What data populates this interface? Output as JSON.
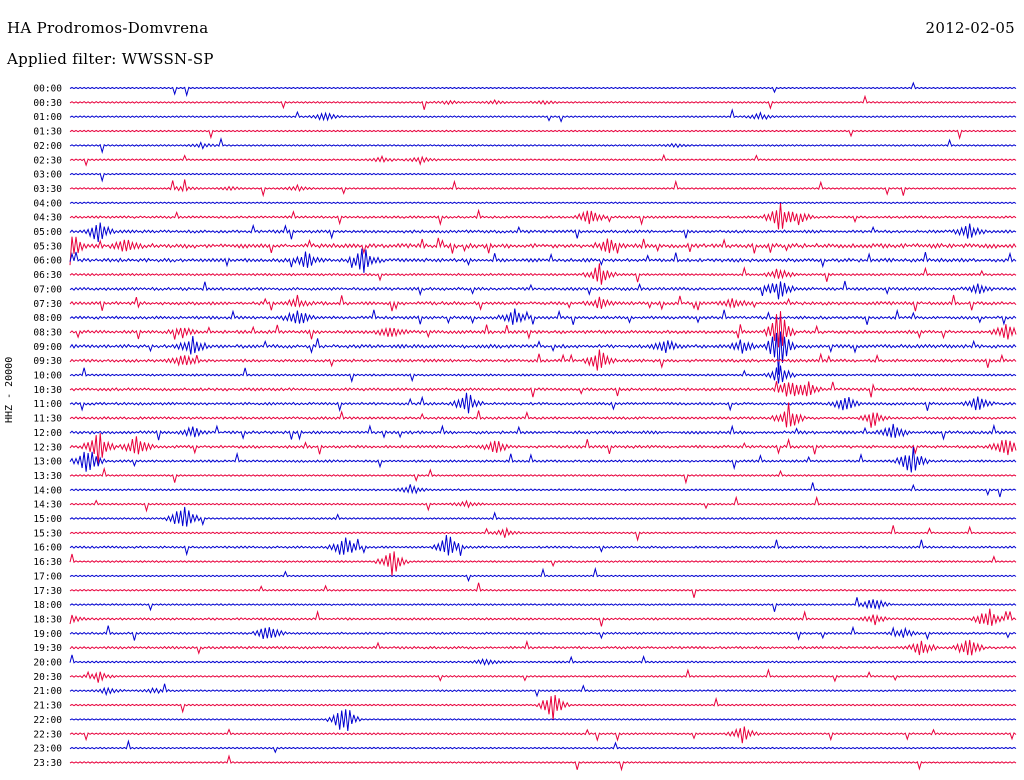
{
  "header": {
    "station": "HA Prodromos-Domvrena",
    "date": "2012-02-05",
    "filter": "Applied filter: WWSSN-SP",
    "channel": "HHZ - 20000"
  },
  "chart_data": {
    "type": "line",
    "title": "HA Prodromos-Domvrena",
    "subtitle": "Applied filter: WWSSN-SP",
    "date": "2012-02-05",
    "ylabel": "HHZ - 20000",
    "colors": {
      "even_row": "#0000d0",
      "odd_row": "#e8003c",
      "background": "#ffffff"
    },
    "rows": [
      {
        "label": "00:00",
        "activity": 0.05,
        "events": []
      },
      {
        "label": "00:30",
        "activity": 0.08,
        "events": [
          [
            0.4,
            2
          ],
          [
            0.45,
            2
          ],
          [
            0.5,
            2
          ]
        ]
      },
      {
        "label": "01:00",
        "activity": 0.08,
        "events": [
          [
            0.27,
            5
          ],
          [
            0.73,
            4
          ]
        ]
      },
      {
        "label": "01:30",
        "activity": 0.07,
        "events": []
      },
      {
        "label": "02:00",
        "activity": 0.07,
        "events": [
          [
            0.14,
            3
          ],
          [
            0.64,
            2
          ]
        ]
      },
      {
        "label": "02:30",
        "activity": 0.1,
        "events": [
          [
            0.33,
            3
          ],
          [
            0.37,
            4
          ]
        ]
      },
      {
        "label": "03:00",
        "activity": 0.05,
        "events": []
      },
      {
        "label": "03:30",
        "activity": 0.08,
        "events": [
          [
            0.12,
            3
          ],
          [
            0.17,
            2
          ],
          [
            0.24,
            3
          ]
        ]
      },
      {
        "label": "04:00",
        "activity": 0.06,
        "events": []
      },
      {
        "label": "04:30",
        "activity": 0.2,
        "events": [
          [
            0.55,
            10
          ],
          [
            0.75,
            18
          ],
          [
            0.77,
            8
          ]
        ]
      },
      {
        "label": "05:00",
        "activity": 0.3,
        "events": [
          [
            0.03,
            12
          ],
          [
            0.95,
            10
          ]
        ]
      },
      {
        "label": "05:30",
        "activity": 0.55,
        "events": [
          [
            0.0,
            20
          ],
          [
            0.06,
            10
          ],
          [
            0.57,
            8
          ]
        ]
      },
      {
        "label": "06:00",
        "activity": 0.4,
        "events": [
          [
            0.25,
            9
          ],
          [
            0.31,
            14
          ]
        ]
      },
      {
        "label": "06:30",
        "activity": 0.18,
        "events": [
          [
            0.56,
            12
          ],
          [
            0.75,
            8
          ]
        ]
      },
      {
        "label": "07:00",
        "activity": 0.3,
        "events": [
          [
            0.75,
            14
          ],
          [
            0.96,
            6
          ]
        ]
      },
      {
        "label": "07:30",
        "activity": 0.35,
        "events": [
          [
            0.24,
            6
          ],
          [
            0.56,
            6
          ],
          [
            0.7,
            6
          ]
        ]
      },
      {
        "label": "08:00",
        "activity": 0.3,
        "events": [
          [
            0.24,
            12
          ],
          [
            0.47,
            10
          ]
        ]
      },
      {
        "label": "08:30",
        "activity": 0.35,
        "events": [
          [
            0.12,
            6
          ],
          [
            0.34,
            8
          ],
          [
            0.75,
            30
          ],
          [
            0.99,
            10
          ]
        ]
      },
      {
        "label": "09:00",
        "activity": 0.4,
        "events": [
          [
            0.13,
            12
          ],
          [
            0.63,
            8
          ],
          [
            0.71,
            8
          ],
          [
            0.75,
            28
          ]
        ]
      },
      {
        "label": "09:30",
        "activity": 0.3,
        "events": [
          [
            0.12,
            8
          ],
          [
            0.56,
            14
          ]
        ]
      },
      {
        "label": "10:00",
        "activity": 0.15,
        "events": [
          [
            0.75,
            12
          ]
        ]
      },
      {
        "label": "10:30",
        "activity": 0.28,
        "events": [
          [
            0.76,
            12
          ],
          [
            0.78,
            8
          ]
        ]
      },
      {
        "label": "11:00",
        "activity": 0.25,
        "events": [
          [
            0.42,
            14
          ],
          [
            0.82,
            10
          ],
          [
            0.96,
            10
          ]
        ]
      },
      {
        "label": "11:30",
        "activity": 0.22,
        "events": [
          [
            0.76,
            16
          ],
          [
            0.85,
            8
          ]
        ]
      },
      {
        "label": "12:00",
        "activity": 0.3,
        "events": [
          [
            0.13,
            6
          ],
          [
            0.87,
            10
          ]
        ]
      },
      {
        "label": "12:30",
        "activity": 0.28,
        "events": [
          [
            0.03,
            18
          ],
          [
            0.07,
            14
          ],
          [
            0.45,
            10
          ],
          [
            0.99,
            14
          ]
        ]
      },
      {
        "label": "13:00",
        "activity": 0.2,
        "events": [
          [
            0.02,
            18
          ],
          [
            0.89,
            18
          ]
        ]
      },
      {
        "label": "13:30",
        "activity": 0.1,
        "events": []
      },
      {
        "label": "14:00",
        "activity": 0.12,
        "events": [
          [
            0.36,
            6
          ]
        ]
      },
      {
        "label": "14:30",
        "activity": 0.1,
        "events": [
          [
            0.42,
            4
          ]
        ]
      },
      {
        "label": "15:00",
        "activity": 0.12,
        "events": [
          [
            0.12,
            18
          ]
        ]
      },
      {
        "label": "15:30",
        "activity": 0.1,
        "events": [
          [
            0.46,
            5
          ]
        ]
      },
      {
        "label": "16:00",
        "activity": 0.18,
        "events": [
          [
            0.29,
            14
          ],
          [
            0.4,
            16
          ]
        ]
      },
      {
        "label": "16:30",
        "activity": 0.12,
        "events": [
          [
            0.34,
            18
          ]
        ]
      },
      {
        "label": "17:00",
        "activity": 0.05,
        "events": []
      },
      {
        "label": "17:30",
        "activity": 0.1,
        "events": []
      },
      {
        "label": "18:00",
        "activity": 0.1,
        "events": [
          [
            0.85,
            10
          ]
        ]
      },
      {
        "label": "18:30",
        "activity": 0.18,
        "events": [
          [
            0.0,
            8
          ],
          [
            0.85,
            6
          ],
          [
            0.97,
            14
          ]
        ]
      },
      {
        "label": "19:00",
        "activity": 0.16,
        "events": [
          [
            0.21,
            12
          ],
          [
            0.88,
            6
          ]
        ]
      },
      {
        "label": "19:30",
        "activity": 0.22,
        "events": [
          [
            0.9,
            10
          ],
          [
            0.95,
            14
          ]
        ]
      },
      {
        "label": "20:00",
        "activity": 0.12,
        "events": [
          [
            0.44,
            4
          ]
        ]
      },
      {
        "label": "20:30",
        "activity": 0.1,
        "events": [
          [
            0.03,
            6
          ]
        ]
      },
      {
        "label": "21:00",
        "activity": 0.1,
        "events": [
          [
            0.04,
            4
          ],
          [
            0.09,
            3
          ]
        ]
      },
      {
        "label": "21:30",
        "activity": 0.1,
        "events": [
          [
            0.51,
            16
          ]
        ]
      },
      {
        "label": "22:00",
        "activity": 0.05,
        "events": [
          [
            0.29,
            20
          ]
        ]
      },
      {
        "label": "22:30",
        "activity": 0.12,
        "events": [
          [
            0.71,
            10
          ]
        ]
      },
      {
        "label": "23:00",
        "activity": 0.06,
        "events": []
      },
      {
        "label": "23:30",
        "activity": 0.08,
        "events": []
      }
    ]
  }
}
